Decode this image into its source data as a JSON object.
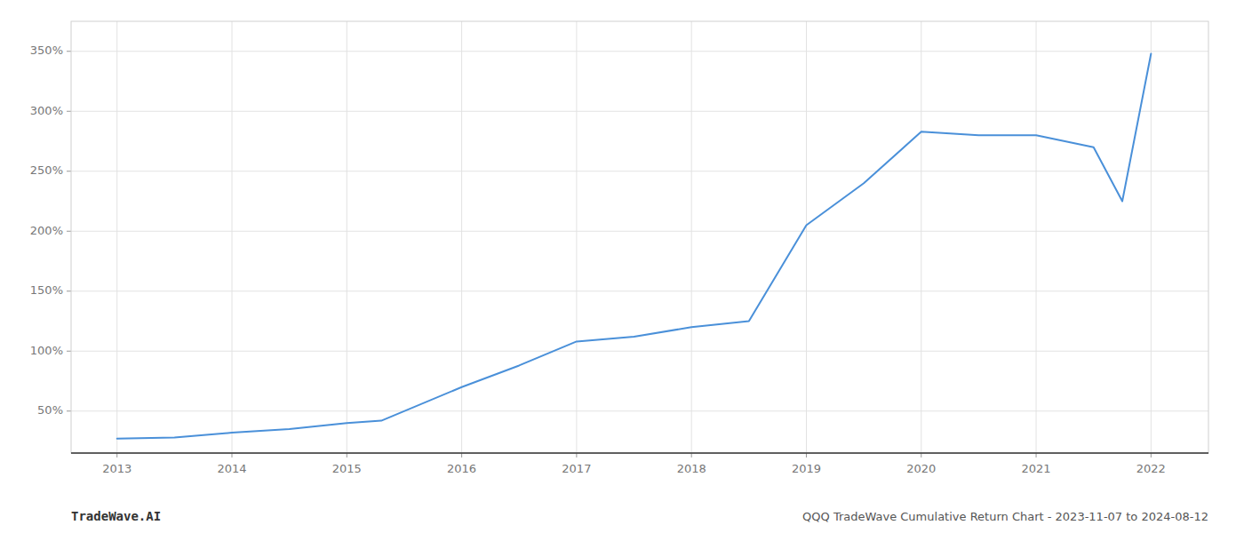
{
  "chart_data": {
    "type": "line",
    "x": [
      2013,
      2013.5,
      2014,
      2014.5,
      2015,
      2015.3,
      2016,
      2016.5,
      2017,
      2017.5,
      2018,
      2018.5,
      2019,
      2019.5,
      2020,
      2020.5,
      2021,
      2021.5,
      2021.75,
      2022
    ],
    "values": [
      27,
      28,
      32,
      35,
      40,
      42,
      70,
      88,
      108,
      112,
      120,
      125,
      205,
      240,
      283,
      280,
      280,
      270,
      225,
      348
    ],
    "color": "#4a90d9",
    "xlim": [
      2012.6,
      2022.5
    ],
    "ylim": [
      15,
      375
    ],
    "xticks": [
      2013,
      2014,
      2015,
      2016,
      2017,
      2018,
      2019,
      2020,
      2021,
      2022
    ],
    "yticks": [
      {
        "value": 50,
        "label": "50%"
      },
      {
        "value": 100,
        "label": "100%"
      },
      {
        "value": 150,
        "label": "150%"
      },
      {
        "value": 200,
        "label": "200%"
      },
      {
        "value": 250,
        "label": "250%"
      },
      {
        "value": 300,
        "label": "300%"
      },
      {
        "value": 350,
        "label": "350%"
      }
    ],
    "grid": true,
    "annotations": [
      "TradeWave.AI",
      "QQQ TradeWave Cumulative Return Chart - 2023-11-07 to 2024-08-12"
    ]
  }
}
